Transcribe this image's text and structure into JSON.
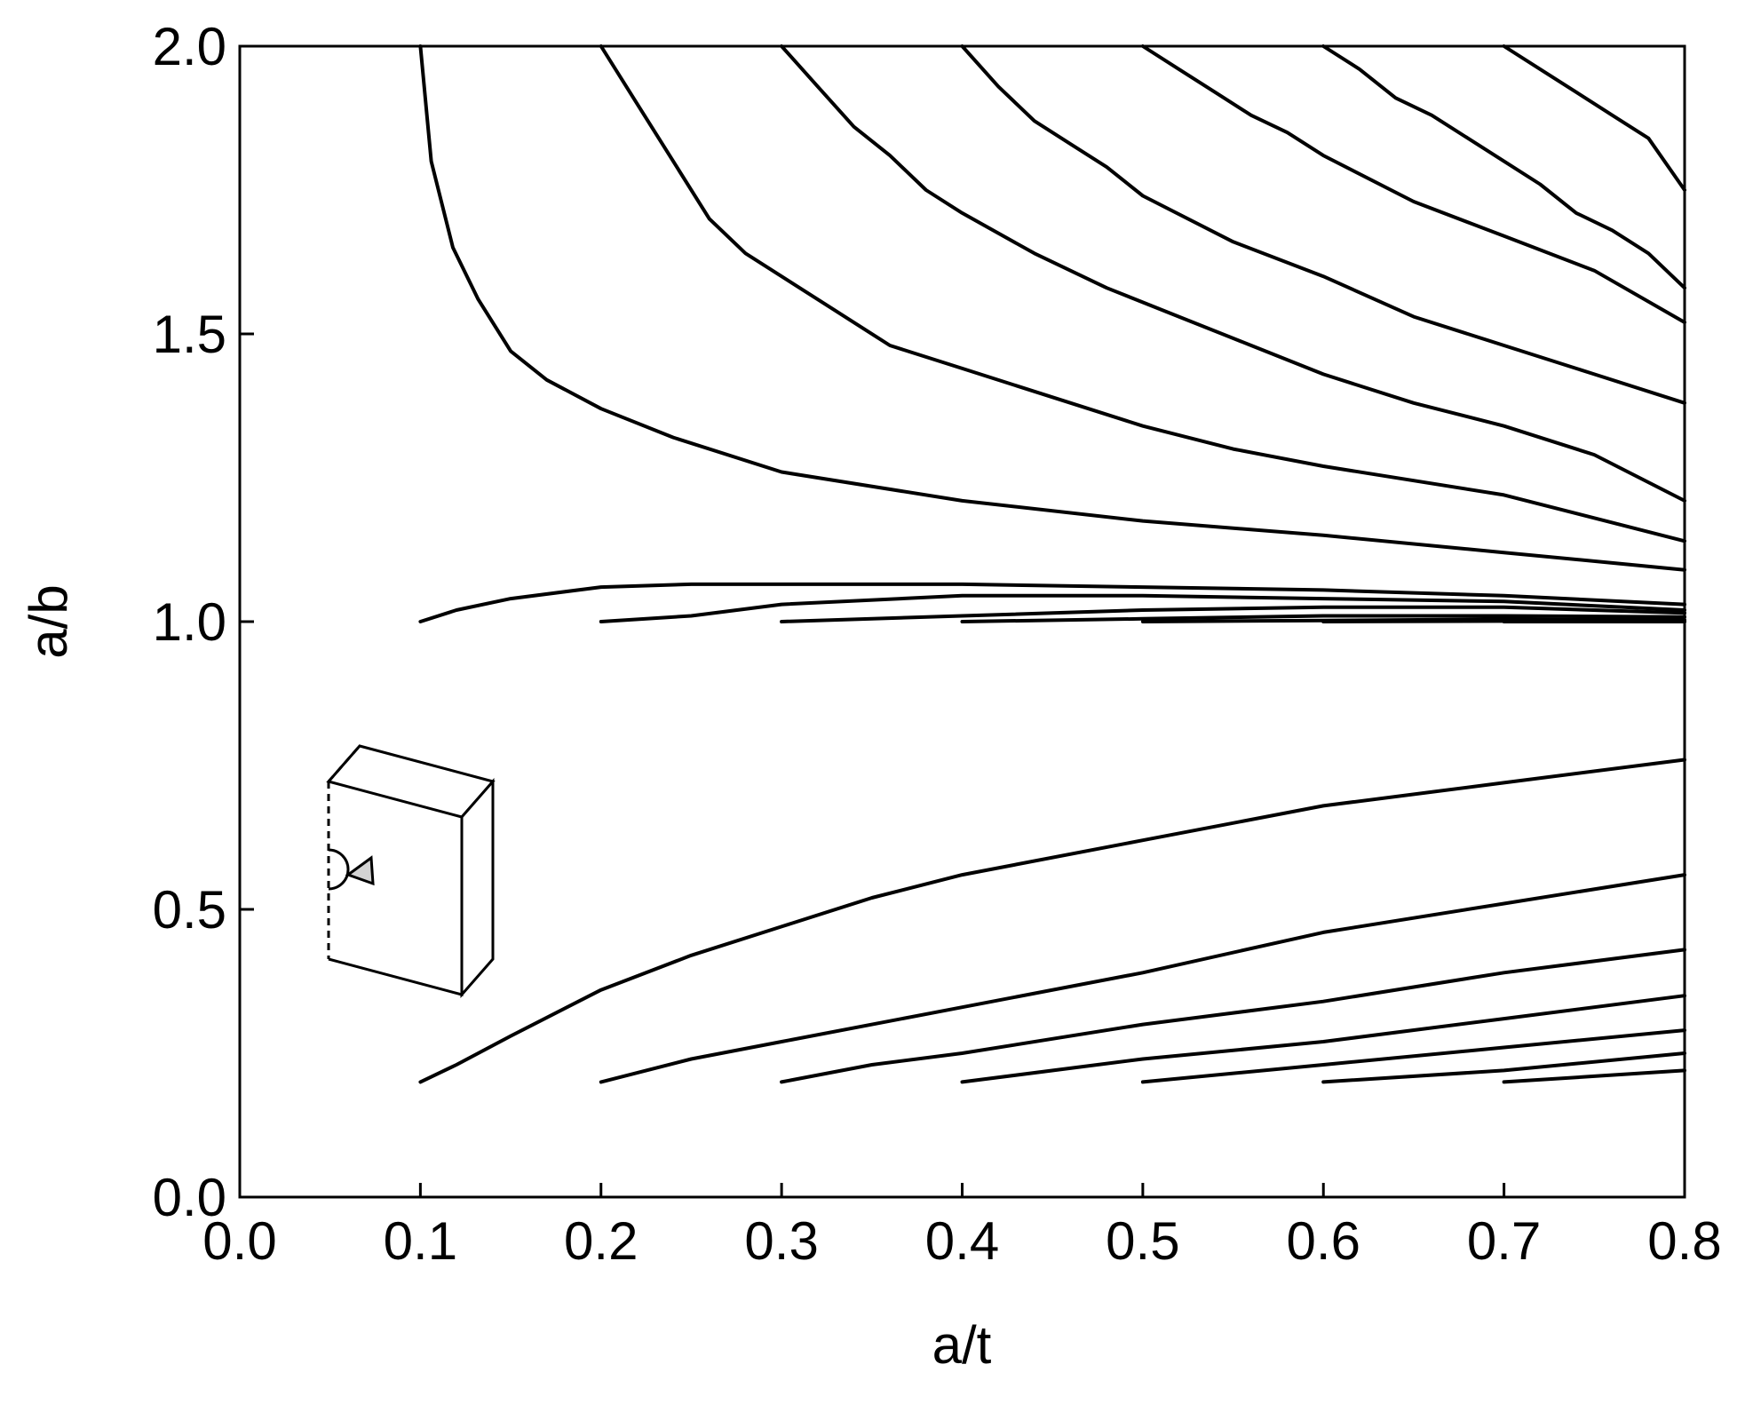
{
  "chart_data": {
    "type": "line",
    "title": "",
    "xlabel": "a/t",
    "ylabel": "a/b",
    "xlim": [
      0.0,
      0.8
    ],
    "ylim": [
      0.0,
      2.0
    ],
    "x_ticks": [
      "0.0",
      "0.1",
      "0.2",
      "0.3",
      "0.4",
      "0.5",
      "0.6",
      "0.7",
      "0.8"
    ],
    "y_ticks": [
      "0.0",
      "0.5",
      "1.0",
      "1.5",
      "2.0"
    ],
    "grid": false,
    "legend": "none",
    "line_color": "#000000",
    "inset_icon": "semi-elliptical-surface-crack-plate-icon",
    "series": [
      {
        "x": [
          0.1,
          0.106,
          0.118,
          0.132,
          0.15,
          0.17,
          0.2,
          0.24,
          0.3,
          0.4,
          0.5,
          0.6,
          0.7,
          0.8
        ],
        "y": [
          2.0,
          1.8,
          1.65,
          1.56,
          1.47,
          1.42,
          1.37,
          1.32,
          1.26,
          1.21,
          1.175,
          1.15,
          1.12,
          1.09
        ]
      },
      {
        "x": [
          0.2,
          0.22,
          0.24,
          0.26,
          0.28,
          0.3,
          0.33,
          0.36,
          0.4,
          0.45,
          0.5,
          0.55,
          0.6,
          0.7,
          0.8
        ],
        "y": [
          2.0,
          1.9,
          1.8,
          1.7,
          1.64,
          1.6,
          1.54,
          1.48,
          1.44,
          1.39,
          1.34,
          1.3,
          1.27,
          1.22,
          1.14
        ]
      },
      {
        "x": [
          0.3,
          0.32,
          0.34,
          0.36,
          0.38,
          0.4,
          0.44,
          0.48,
          0.52,
          0.56,
          0.6,
          0.65,
          0.7,
          0.75,
          0.8
        ],
        "y": [
          2.0,
          1.93,
          1.86,
          1.81,
          1.75,
          1.71,
          1.64,
          1.58,
          1.53,
          1.48,
          1.43,
          1.38,
          1.34,
          1.29,
          1.21
        ]
      },
      {
        "x": [
          0.4,
          0.42,
          0.44,
          0.46,
          0.48,
          0.5,
          0.55,
          0.6,
          0.65,
          0.7,
          0.75,
          0.8
        ],
        "y": [
          2.0,
          1.93,
          1.87,
          1.83,
          1.79,
          1.74,
          1.66,
          1.6,
          1.53,
          1.48,
          1.43,
          1.38
        ]
      },
      {
        "x": [
          0.5,
          0.52,
          0.54,
          0.56,
          0.58,
          0.6,
          0.65,
          0.7,
          0.75,
          0.8
        ],
        "y": [
          2.0,
          1.96,
          1.92,
          1.88,
          1.85,
          1.81,
          1.73,
          1.67,
          1.61,
          1.52
        ]
      },
      {
        "x": [
          0.6,
          0.62,
          0.64,
          0.66,
          0.68,
          0.7,
          0.72,
          0.74,
          0.76,
          0.78,
          0.8
        ],
        "y": [
          2.0,
          1.96,
          1.91,
          1.88,
          1.84,
          1.8,
          1.76,
          1.71,
          1.68,
          1.64,
          1.58
        ]
      },
      {
        "x": [
          0.7,
          0.72,
          0.74,
          0.76,
          0.78,
          0.8
        ],
        "y": [
          2.0,
          1.96,
          1.92,
          1.88,
          1.84,
          1.75
        ]
      },
      {
        "x": [
          0.1,
          0.12,
          0.15,
          0.2,
          0.25,
          0.3,
          0.4,
          0.5,
          0.6,
          0.7,
          0.8
        ],
        "y": [
          1.0,
          1.02,
          1.04,
          1.06,
          1.065,
          1.065,
          1.065,
          1.06,
          1.055,
          1.045,
          1.03
        ]
      },
      {
        "x": [
          0.2,
          0.25,
          0.3,
          0.4,
          0.5,
          0.6,
          0.7,
          0.8
        ],
        "y": [
          1.0,
          1.01,
          1.03,
          1.045,
          1.045,
          1.04,
          1.035,
          1.02
        ]
      },
      {
        "x": [
          0.3,
          0.4,
          0.5,
          0.6,
          0.7,
          0.8
        ],
        "y": [
          1.0,
          1.01,
          1.02,
          1.025,
          1.025,
          1.015
        ]
      },
      {
        "x": [
          0.4,
          0.5,
          0.6,
          0.7,
          0.8
        ],
        "y": [
          1.0,
          1.005,
          1.01,
          1.01,
          1.008
        ]
      },
      {
        "x": [
          0.5,
          0.6,
          0.7,
          0.8
        ],
        "y": [
          1.0,
          1.002,
          1.004,
          1.003
        ]
      },
      {
        "x": [
          0.6,
          0.7,
          0.8
        ],
        "y": [
          1.0,
          1.001,
          1.0
        ]
      },
      {
        "x": [
          0.7,
          0.8
        ],
        "y": [
          1.0,
          1.0
        ]
      },
      {
        "x": [
          0.1,
          0.12,
          0.15,
          0.2,
          0.25,
          0.3,
          0.35,
          0.4,
          0.5,
          0.6,
          0.7,
          0.8
        ],
        "y": [
          0.2,
          0.23,
          0.28,
          0.36,
          0.42,
          0.47,
          0.52,
          0.56,
          0.62,
          0.68,
          0.72,
          0.76
        ]
      },
      {
        "x": [
          0.2,
          0.25,
          0.3,
          0.4,
          0.5,
          0.6,
          0.7,
          0.8
        ],
        "y": [
          0.2,
          0.24,
          0.27,
          0.33,
          0.39,
          0.46,
          0.51,
          0.56
        ]
      },
      {
        "x": [
          0.3,
          0.35,
          0.4,
          0.5,
          0.6,
          0.7,
          0.8
        ],
        "y": [
          0.2,
          0.23,
          0.25,
          0.3,
          0.34,
          0.39,
          0.43
        ]
      },
      {
        "x": [
          0.4,
          0.5,
          0.6,
          0.7,
          0.8
        ],
        "y": [
          0.2,
          0.24,
          0.27,
          0.31,
          0.35
        ]
      },
      {
        "x": [
          0.5,
          0.6,
          0.7,
          0.8
        ],
        "y": [
          0.2,
          0.23,
          0.26,
          0.29
        ]
      },
      {
        "x": [
          0.6,
          0.7,
          0.8
        ],
        "y": [
          0.2,
          0.22,
          0.25
        ]
      },
      {
        "x": [
          0.7,
          0.75,
          0.8
        ],
        "y": [
          0.2,
          0.21,
          0.22
        ]
      }
    ]
  }
}
